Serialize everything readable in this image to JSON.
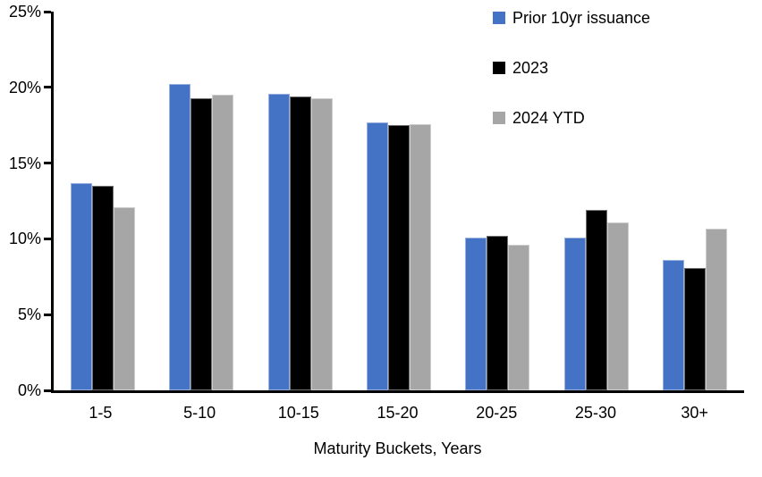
{
  "chart_data": {
    "type": "bar",
    "title": "",
    "xlabel": "Maturity Buckets, Years",
    "ylabel": "",
    "ylim": [
      0,
      25
    ],
    "grid": false,
    "legend_position": "top-right",
    "y_ticks": [
      0,
      5,
      10,
      15,
      20,
      25
    ],
    "y_tick_labels": [
      "0%",
      "5%",
      "10%",
      "15%",
      "20%",
      "25%"
    ],
    "categories": [
      "1-5",
      "5-10",
      "10-15",
      "15-20",
      "20-25",
      "25-30",
      "30+"
    ],
    "series": [
      {
        "name": "Prior 10yr issuance",
        "color": "#4472C4",
        "values": [
          13.7,
          20.2,
          19.6,
          17.7,
          10.1,
          10.1,
          8.6
        ]
      },
      {
        "name": "2023",
        "color": "#000000",
        "values": [
          13.5,
          19.3,
          19.4,
          17.5,
          10.2,
          11.9,
          8.1
        ]
      },
      {
        "name": "2024 YTD",
        "color": "#A6A6A6",
        "values": [
          12.1,
          19.5,
          19.3,
          17.6,
          9.6,
          11.1,
          10.7
        ]
      }
    ]
  }
}
